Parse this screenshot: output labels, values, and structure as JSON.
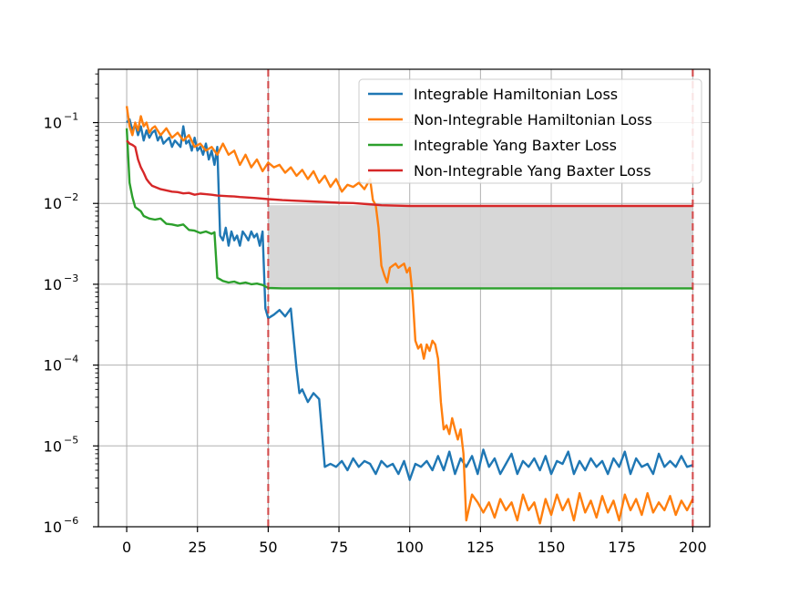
{
  "chart_data": {
    "type": "line",
    "title": "",
    "xlabel": "",
    "ylabel": "",
    "xlim": [
      -10,
      206
    ],
    "ylim": [
      1e-06,
      0.5
    ],
    "yscale": "log",
    "grid": true,
    "legend_position": "top-right",
    "x_ticks": [
      0,
      25,
      50,
      75,
      100,
      125,
      150,
      175,
      200
    ],
    "x_tick_labels": [
      "0",
      "25",
      "50",
      "75",
      "100",
      "125",
      "150",
      "175",
      "200"
    ],
    "y_ticks": [
      1e-06,
      1e-05,
      0.0001,
      0.001,
      0.01,
      0.1
    ],
    "y_tick_labels": [
      {
        "base": "10",
        "exp": "−6"
      },
      {
        "base": "10",
        "exp": "−5"
      },
      {
        "base": "10",
        "exp": "−4"
      },
      {
        "base": "10",
        "exp": "−3"
      },
      {
        "base": "10",
        "exp": "−2"
      },
      {
        "base": "10",
        "exp": "−1"
      }
    ],
    "vlines": [
      {
        "x": 50,
        "color": "#d62728",
        "style": "dashed"
      },
      {
        "x": 200,
        "color": "#d62728",
        "style": "dashed"
      }
    ],
    "shaded_band": {
      "x": [
        50,
        200
      ],
      "y": [
        0.0009,
        0.0095
      ],
      "color": "#d3d3d3"
    },
    "series": [
      {
        "name": "Integrable Hamiltonian Loss",
        "color": "#1f77b4",
        "x": [
          0,
          1,
          2,
          3,
          4,
          5,
          6,
          7,
          8,
          9,
          10,
          11,
          12,
          13,
          14,
          15,
          16,
          17,
          18,
          19,
          20,
          21,
          22,
          23,
          24,
          25,
          26,
          27,
          28,
          29,
          30,
          31,
          32,
          33,
          34,
          35,
          36,
          37,
          38,
          39,
          40,
          41,
          42,
          43,
          44,
          45,
          46,
          47,
          48,
          49,
          50,
          52,
          54,
          56,
          58,
          60,
          61,
          62,
          64,
          66,
          68,
          70,
          72,
          74,
          76,
          78,
          80,
          82,
          84,
          86,
          88,
          90,
          92,
          94,
          96,
          98,
          100,
          102,
          104,
          106,
          108,
          110,
          112,
          114,
          116,
          118,
          120,
          122,
          124,
          126,
          128,
          130,
          132,
          134,
          136,
          138,
          140,
          142,
          144,
          146,
          148,
          150,
          152,
          154,
          156,
          158,
          160,
          162,
          164,
          166,
          168,
          170,
          172,
          174,
          176,
          178,
          180,
          182,
          184,
          186,
          188,
          190,
          192,
          194,
          196,
          198,
          200
        ],
        "y": [
          0.1,
          0.11,
          0.08,
          0.095,
          0.07,
          0.09,
          0.06,
          0.08,
          0.065,
          0.075,
          0.08,
          0.06,
          0.07,
          0.055,
          0.06,
          0.065,
          0.05,
          0.06,
          0.055,
          0.05,
          0.09,
          0.055,
          0.06,
          0.045,
          0.065,
          0.045,
          0.05,
          0.04,
          0.055,
          0.035,
          0.045,
          0.03,
          0.05,
          0.004,
          0.0035,
          0.005,
          0.003,
          0.0045,
          0.0035,
          0.004,
          0.003,
          0.0045,
          0.004,
          0.0035,
          0.0045,
          0.0038,
          0.0042,
          0.003,
          0.0045,
          0.0005,
          0.00038,
          0.00042,
          0.00048,
          0.0004,
          0.0005,
          9e-05,
          4.5e-05,
          5e-05,
          3.5e-05,
          4.5e-05,
          3.8e-05,
          5.5e-06,
          6e-06,
          5.5e-06,
          6.5e-06,
          5e-06,
          7e-06,
          5.5e-06,
          6.5e-06,
          6e-06,
          4.5e-06,
          6.5e-06,
          5.5e-06,
          6e-06,
          4.5e-06,
          6.5e-06,
          3.8e-06,
          6e-06,
          5.5e-06,
          6.5e-06,
          5e-06,
          7.5e-06,
          5e-06,
          8.5e-06,
          4.5e-06,
          7e-06,
          5.5e-06,
          7.5e-06,
          4.5e-06,
          9e-06,
          5.5e-06,
          7e-06,
          4.5e-06,
          6e-06,
          8e-06,
          4.5e-06,
          6.5e-06,
          5.5e-06,
          7e-06,
          5e-06,
          7.5e-06,
          4.5e-06,
          6.5e-06,
          6e-06,
          8.5e-06,
          4.5e-06,
          6.5e-06,
          5e-06,
          7e-06,
          5.5e-06,
          6.5e-06,
          4.5e-06,
          7e-06,
          5.5e-06,
          8.5e-06,
          4.5e-06,
          7e-06,
          5.5e-06,
          6e-06,
          4.5e-06,
          8e-06,
          5.5e-06,
          6.5e-06,
          5.5e-06,
          7.5e-06,
          5.5e-06,
          5.8e-06
        ]
      },
      {
        "name": "Non-Integrable Hamiltonian Loss",
        "color": "#ff7f0e",
        "x": [
          0,
          1,
          2,
          3,
          4,
          5,
          6,
          7,
          8,
          9,
          10,
          12,
          14,
          16,
          18,
          20,
          22,
          24,
          26,
          28,
          30,
          32,
          34,
          36,
          38,
          40,
          42,
          44,
          46,
          48,
          50,
          52,
          54,
          56,
          58,
          60,
          62,
          64,
          66,
          68,
          70,
          72,
          74,
          76,
          78,
          80,
          82,
          84,
          86,
          87,
          88,
          89,
          90,
          91,
          92,
          93,
          94,
          95,
          96,
          97,
          98,
          99,
          100,
          101,
          102,
          103,
          104,
          105,
          106,
          107,
          108,
          109,
          110,
          111,
          112,
          113,
          114,
          115,
          116,
          117,
          118,
          119,
          120,
          122,
          124,
          126,
          128,
          130,
          132,
          134,
          136,
          138,
          140,
          142,
          144,
          146,
          148,
          150,
          152,
          154,
          156,
          158,
          160,
          162,
          164,
          166,
          168,
          170,
          172,
          174,
          176,
          178,
          180,
          182,
          184,
          186,
          188,
          190,
          192,
          194,
          196,
          198,
          200
        ],
        "y": [
          0.16,
          0.09,
          0.07,
          0.1,
          0.08,
          0.12,
          0.09,
          0.1,
          0.075,
          0.085,
          0.09,
          0.07,
          0.085,
          0.065,
          0.075,
          0.06,
          0.07,
          0.05,
          0.055,
          0.045,
          0.05,
          0.04,
          0.055,
          0.04,
          0.045,
          0.03,
          0.04,
          0.028,
          0.035,
          0.025,
          0.032,
          0.028,
          0.03,
          0.024,
          0.028,
          0.022,
          0.026,
          0.02,
          0.025,
          0.018,
          0.022,
          0.016,
          0.02,
          0.014,
          0.017,
          0.016,
          0.018,
          0.015,
          0.02,
          0.011,
          0.0095,
          0.005,
          0.0017,
          0.0013,
          0.00105,
          0.0016,
          0.0017,
          0.0018,
          0.0016,
          0.0017,
          0.0018,
          0.0014,
          0.0016,
          0.00075,
          0.0002,
          0.00016,
          0.00018,
          0.00012,
          0.00018,
          0.00015,
          0.0002,
          0.00018,
          0.00012,
          3.5e-05,
          1.6e-05,
          1.8e-05,
          1.4e-05,
          2.2e-05,
          1.6e-05,
          1.2e-05,
          1.6e-05,
          8e-06,
          1.2e-06,
          2.5e-06,
          2e-06,
          1.5e-06,
          2e-06,
          1.3e-06,
          2.2e-06,
          1.6e-06,
          2e-06,
          1.2e-06,
          2.5e-06,
          1.6e-06,
          2e-06,
          1.1e-06,
          2.2e-06,
          1.4e-06,
          2.5e-06,
          1.6e-06,
          2.2e-06,
          1.2e-06,
          2.6e-06,
          1.5e-06,
          2.1e-06,
          1.3e-06,
          2.4e-06,
          1.5e-06,
          2.1e-06,
          1.2e-06,
          2.5e-06,
          1.6e-06,
          2.2e-06,
          1.4e-06,
          2.6e-06,
          1.5e-06,
          2e-06,
          1.6e-06,
          2.4e-06,
          1.4e-06,
          2.1e-06,
          1.6e-06,
          2.2e-06
        ]
      },
      {
        "name": "Integrable Yang Baxter Loss",
        "color": "#2ca02c",
        "x": [
          0,
          1,
          2,
          3,
          4,
          5,
          6,
          8,
          10,
          12,
          14,
          16,
          18,
          20,
          22,
          24,
          26,
          28,
          30,
          31,
          32,
          33,
          34,
          36,
          38,
          40,
          42,
          44,
          46,
          48,
          50,
          55,
          60,
          70,
          80,
          90,
          100,
          120,
          140,
          160,
          180,
          200
        ],
        "y": [
          0.085,
          0.018,
          0.012,
          0.009,
          0.0085,
          0.008,
          0.007,
          0.0065,
          0.0063,
          0.0065,
          0.0056,
          0.0055,
          0.0053,
          0.0055,
          0.0047,
          0.0046,
          0.0043,
          0.0045,
          0.0042,
          0.0044,
          0.0012,
          0.00115,
          0.0011,
          0.00105,
          0.00108,
          0.00102,
          0.00105,
          0.001,
          0.00102,
          0.00098,
          0.0009,
          0.00089,
          0.00089,
          0.00089,
          0.00089,
          0.00089,
          0.00089,
          0.00089,
          0.00089,
          0.00089,
          0.00089,
          0.00089
        ]
      },
      {
        "name": "Non-Integrable Yang Baxter Loss",
        "color": "#d62728",
        "x": [
          0,
          1,
          2,
          3,
          4,
          5,
          6,
          7,
          8,
          9,
          10,
          12,
          14,
          16,
          18,
          20,
          22,
          24,
          26,
          28,
          30,
          32,
          34,
          36,
          38,
          40,
          45,
          50,
          55,
          60,
          65,
          70,
          75,
          80,
          85,
          90,
          100,
          120,
          140,
          160,
          180,
          200
        ],
        "y": [
          0.06,
          0.055,
          0.053,
          0.05,
          0.035,
          0.028,
          0.024,
          0.02,
          0.018,
          0.0165,
          0.016,
          0.015,
          0.0145,
          0.014,
          0.0138,
          0.0133,
          0.0135,
          0.0128,
          0.0132,
          0.013,
          0.0128,
          0.0125,
          0.0124,
          0.0123,
          0.0122,
          0.012,
          0.0117,
          0.0113,
          0.011,
          0.0108,
          0.0106,
          0.0104,
          0.0102,
          0.0101,
          0.0098,
          0.0095,
          0.0093,
          0.0093,
          0.0093,
          0.0093,
          0.0093,
          0.0093
        ]
      }
    ]
  }
}
